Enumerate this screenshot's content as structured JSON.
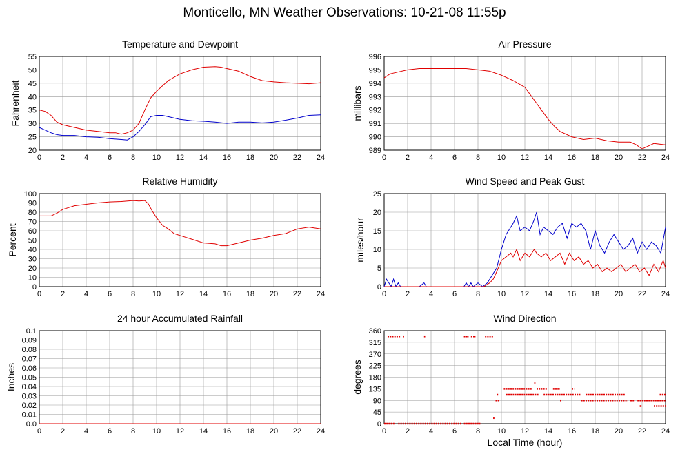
{
  "title": "Monticello, MN Weather Observations: 10-21-08 11:55p",
  "x_axis_label": "Local Time (hour)",
  "colors": {
    "red": "#e00000",
    "blue": "#0000cc",
    "grid": "#999999"
  },
  "chart_data": [
    {
      "id": "temp",
      "type": "line",
      "title": "Temperature and Dewpoint",
      "ylabel": "Fahrenheit",
      "xlim": [
        0,
        24
      ],
      "ylim": [
        20,
        55
      ],
      "xticks": [
        0,
        2,
        4,
        6,
        8,
        10,
        12,
        14,
        16,
        18,
        20,
        22,
        24
      ],
      "yticks": [
        20,
        25,
        30,
        35,
        40,
        45,
        50,
        55
      ],
      "series": [
        {
          "color": "red",
          "x": [
            0,
            0.5,
            1,
            1.5,
            2,
            3,
            4,
            5,
            6,
            6.5,
            7,
            7.5,
            8,
            8.5,
            9,
            9.5,
            10,
            10.5,
            11,
            12,
            13,
            14,
            15,
            15.5,
            16,
            17,
            18,
            19,
            20,
            21,
            22,
            23,
            24
          ],
          "y": [
            35,
            34.5,
            33,
            30.5,
            29.5,
            28.5,
            27.5,
            27,
            26.5,
            26.5,
            26,
            26.5,
            27.5,
            30,
            35,
            39.5,
            42,
            44,
            46,
            48.5,
            50,
            51,
            51.2,
            51,
            50.5,
            49.5,
            47.5,
            46,
            45.5,
            45.2,
            45,
            44.8,
            45.2
          ]
        },
        {
          "color": "blue",
          "x": [
            0,
            0.5,
            1,
            1.5,
            2,
            3,
            4,
            5,
            6,
            7,
            7.5,
            8,
            8.5,
            9,
            9.5,
            10,
            10.5,
            11,
            12,
            13,
            14,
            15,
            16,
            17,
            18,
            19,
            20,
            21,
            22,
            23,
            24
          ],
          "y": [
            28.5,
            27.5,
            26.5,
            25.8,
            25.5,
            25.5,
            25,
            24.8,
            24.3,
            24,
            23.8,
            25,
            27,
            29.5,
            32.5,
            33,
            33,
            32.5,
            31.5,
            31,
            30.8,
            30.5,
            30,
            30.5,
            30.5,
            30.2,
            30.5,
            31.2,
            32,
            33,
            33.2
          ]
        }
      ]
    },
    {
      "id": "pressure",
      "type": "line",
      "title": "Air Pressure",
      "ylabel": "millibars",
      "xlim": [
        0,
        24
      ],
      "ylim": [
        989,
        996
      ],
      "xticks": [
        0,
        2,
        4,
        6,
        8,
        10,
        12,
        14,
        16,
        18,
        20,
        22,
        24
      ],
      "yticks": [
        989,
        990,
        991,
        992,
        993,
        994,
        995,
        996
      ],
      "series": [
        {
          "color": "red",
          "x": [
            0,
            0.5,
            1,
            2,
            3,
            4,
            5,
            6,
            7,
            8,
            9,
            10,
            11,
            12,
            12.5,
            13,
            13.5,
            14,
            14.5,
            15,
            16,
            17,
            18,
            19,
            20,
            21,
            21.5,
            22,
            22.5,
            23,
            24
          ],
          "y": [
            994.4,
            994.7,
            994.8,
            995,
            995.1,
            995.1,
            995.1,
            995.1,
            995.1,
            995,
            994.9,
            994.6,
            994.2,
            993.7,
            993.1,
            992.5,
            991.9,
            991.3,
            990.8,
            990.4,
            990.0,
            989.8,
            989.9,
            989.7,
            989.6,
            989.6,
            989.4,
            989.1,
            989.3,
            989.5,
            989.4
          ]
        }
      ]
    },
    {
      "id": "humidity",
      "type": "line",
      "title": "Relative Humidity",
      "ylabel": "Percent",
      "xlim": [
        0,
        24
      ],
      "ylim": [
        0,
        100
      ],
      "xticks": [
        0,
        2,
        4,
        6,
        8,
        10,
        12,
        14,
        16,
        18,
        20,
        22,
        24
      ],
      "yticks": [
        0,
        10,
        20,
        30,
        40,
        50,
        60,
        70,
        80,
        90,
        100
      ],
      "series": [
        {
          "color": "red",
          "x": [
            0,
            0.5,
            1,
            1.5,
            2,
            3,
            4,
            5,
            6,
            7,
            8,
            8.5,
            9,
            9.3,
            9.6,
            10,
            10.5,
            11,
            11.5,
            12,
            13,
            14,
            15,
            15.5,
            16,
            17,
            18,
            19,
            20,
            21,
            22,
            23,
            24
          ],
          "y": [
            76,
            76,
            76,
            79,
            83,
            87,
            88.5,
            90,
            91,
            91.5,
            92.5,
            92,
            92.5,
            89,
            82,
            74,
            66,
            62,
            57,
            55,
            51,
            47,
            46,
            44,
            44,
            47,
            50,
            52,
            55,
            57,
            62,
            64,
            62
          ]
        }
      ]
    },
    {
      "id": "wind",
      "type": "line",
      "title": "Wind Speed and Peak Gust",
      "ylabel": "miles/hour",
      "xlim": [
        0,
        24
      ],
      "ylim": [
        0,
        25
      ],
      "xticks": [
        0,
        2,
        4,
        6,
        8,
        10,
        12,
        14,
        16,
        18,
        20,
        22,
        24
      ],
      "yticks": [
        0,
        5,
        10,
        15,
        20,
        25
      ],
      "series": [
        {
          "color": "blue",
          "x": [
            0,
            0.2,
            0.4,
            0.6,
            0.8,
            1,
            1.2,
            1.4,
            1.6,
            2,
            3,
            3.4,
            3.6,
            4,
            5,
            6,
            6.8,
            7,
            7.2,
            7.4,
            7.6,
            8,
            8.4,
            8.8,
            9.2,
            9.6,
            10,
            10.4,
            10.8,
            11,
            11.3,
            11.6,
            12,
            12.4,
            12.8,
            13,
            13.3,
            13.6,
            14,
            14.4,
            14.8,
            15.2,
            15.6,
            16,
            16.4,
            16.8,
            17.2,
            17.6,
            18,
            18.4,
            18.8,
            19.2,
            19.6,
            20,
            20.4,
            20.8,
            21.2,
            21.6,
            22,
            22.4,
            22.8,
            23.2,
            23.6,
            24
          ],
          "y": [
            0,
            2,
            1,
            0,
            2,
            0,
            1,
            0,
            0,
            0,
            0,
            1,
            0,
            0,
            0,
            0,
            0,
            1,
            0,
            1,
            0,
            1,
            0,
            1,
            3,
            5,
            10,
            14,
            16,
            17,
            19,
            15,
            16,
            15,
            18,
            20,
            14,
            16,
            15,
            14,
            16,
            17,
            13,
            17,
            16,
            17,
            15,
            10,
            15,
            11,
            9,
            12,
            14,
            12,
            10,
            11,
            13,
            9,
            12,
            10,
            12,
            11,
            9,
            16
          ]
        },
        {
          "color": "red",
          "x": [
            0,
            1,
            2,
            3,
            4,
            5,
            6,
            7,
            7.5,
            8,
            8.5,
            9,
            9.3,
            9.6,
            10,
            10.4,
            10.8,
            11,
            11.3,
            11.6,
            12,
            12.4,
            12.8,
            13,
            13.4,
            13.8,
            14.2,
            14.6,
            15,
            15.4,
            15.8,
            16.2,
            16.6,
            17,
            17.4,
            17.8,
            18.2,
            18.6,
            19,
            19.4,
            19.8,
            20.2,
            20.6,
            21,
            21.4,
            21.8,
            22.2,
            22.6,
            23,
            23.4,
            23.8,
            24
          ],
          "y": [
            0,
            0,
            0,
            0,
            0,
            0,
            0,
            0,
            0,
            0,
            0,
            1,
            2,
            4,
            7,
            8,
            9,
            8,
            10,
            7,
            9,
            8,
            10,
            9,
            8,
            9,
            7,
            8,
            9,
            6,
            9,
            7,
            8,
            6,
            7,
            5,
            6,
            4,
            5,
            4,
            5,
            6,
            4,
            5,
            6,
            4,
            5,
            3,
            6,
            4,
            7,
            5
          ]
        }
      ]
    },
    {
      "id": "rain",
      "type": "line",
      "title": "24 hour Accumulated Rainfall",
      "ylabel": "Inches",
      "xlim": [
        0,
        24
      ],
      "ylim": [
        0,
        0.1
      ],
      "xticks": [
        0,
        2,
        4,
        6,
        8,
        10,
        12,
        14,
        16,
        18,
        20,
        22,
        24
      ],
      "yticks": [
        0.0,
        0.01,
        0.02,
        0.03,
        0.04,
        0.05,
        0.06,
        0.07,
        0.08,
        0.09,
        0.1
      ],
      "ytick_labels": [
        "0.0",
        "0.01",
        "0.02",
        "0.03",
        "0.04",
        "0.05",
        "0.06",
        "0.07",
        "0.08",
        "0.09",
        "0.1"
      ],
      "series": [
        {
          "color": "red",
          "x": [
            0,
            24
          ],
          "y": [
            0,
            0
          ]
        }
      ]
    },
    {
      "id": "direction",
      "type": "scatter",
      "title": "Wind Direction",
      "ylabel": "degrees",
      "xlim": [
        0,
        24
      ],
      "ylim": [
        0,
        360
      ],
      "xticks": [
        0,
        2,
        4,
        6,
        8,
        10,
        12,
        14,
        16,
        18,
        20,
        22,
        24
      ],
      "yticks": [
        0,
        45,
        90,
        135,
        180,
        225,
        270,
        315,
        360
      ],
      "segments": [
        {
          "y": 338,
          "ranges": [
            [
              0.3,
              1.4
            ],
            [
              1.6,
              1.7
            ],
            [
              3.4,
              3.5
            ],
            [
              6.8,
              7.2
            ],
            [
              7.4,
              7.8
            ],
            [
              8.6,
              9.3
            ]
          ]
        },
        {
          "y": 0,
          "ranges": [
            [
              0,
              0.9
            ],
            [
              1.2,
              6.6
            ],
            [
              6.8,
              8.2
            ]
          ]
        },
        {
          "y": 22,
          "ranges": [
            [
              9.3,
              9.4
            ]
          ]
        },
        {
          "y": 90,
          "ranges": [
            [
              9.5,
              9.8
            ],
            [
              15,
              15.1
            ],
            [
              16.8,
              20.8
            ],
            [
              21,
              21.4
            ],
            [
              21.6,
              24
            ]
          ]
        },
        {
          "y": 112,
          "ranges": [
            [
              9.6,
              9.8
            ],
            [
              10.4,
              13.2
            ],
            [
              13.6,
              16.8
            ],
            [
              17.2,
              20.6
            ],
            [
              23.5,
              24
            ]
          ]
        },
        {
          "y": 135,
          "ranges": [
            [
              10.2,
              12.6
            ],
            [
              13,
              14
            ],
            [
              14.4,
              15
            ],
            [
              16,
              16.2
            ]
          ]
        },
        {
          "y": 157,
          "ranges": [
            [
              12.8,
              12.9
            ]
          ]
        },
        {
          "y": 68,
          "ranges": [
            [
              21.8,
              22
            ],
            [
              23,
              24
            ]
          ]
        }
      ]
    }
  ]
}
